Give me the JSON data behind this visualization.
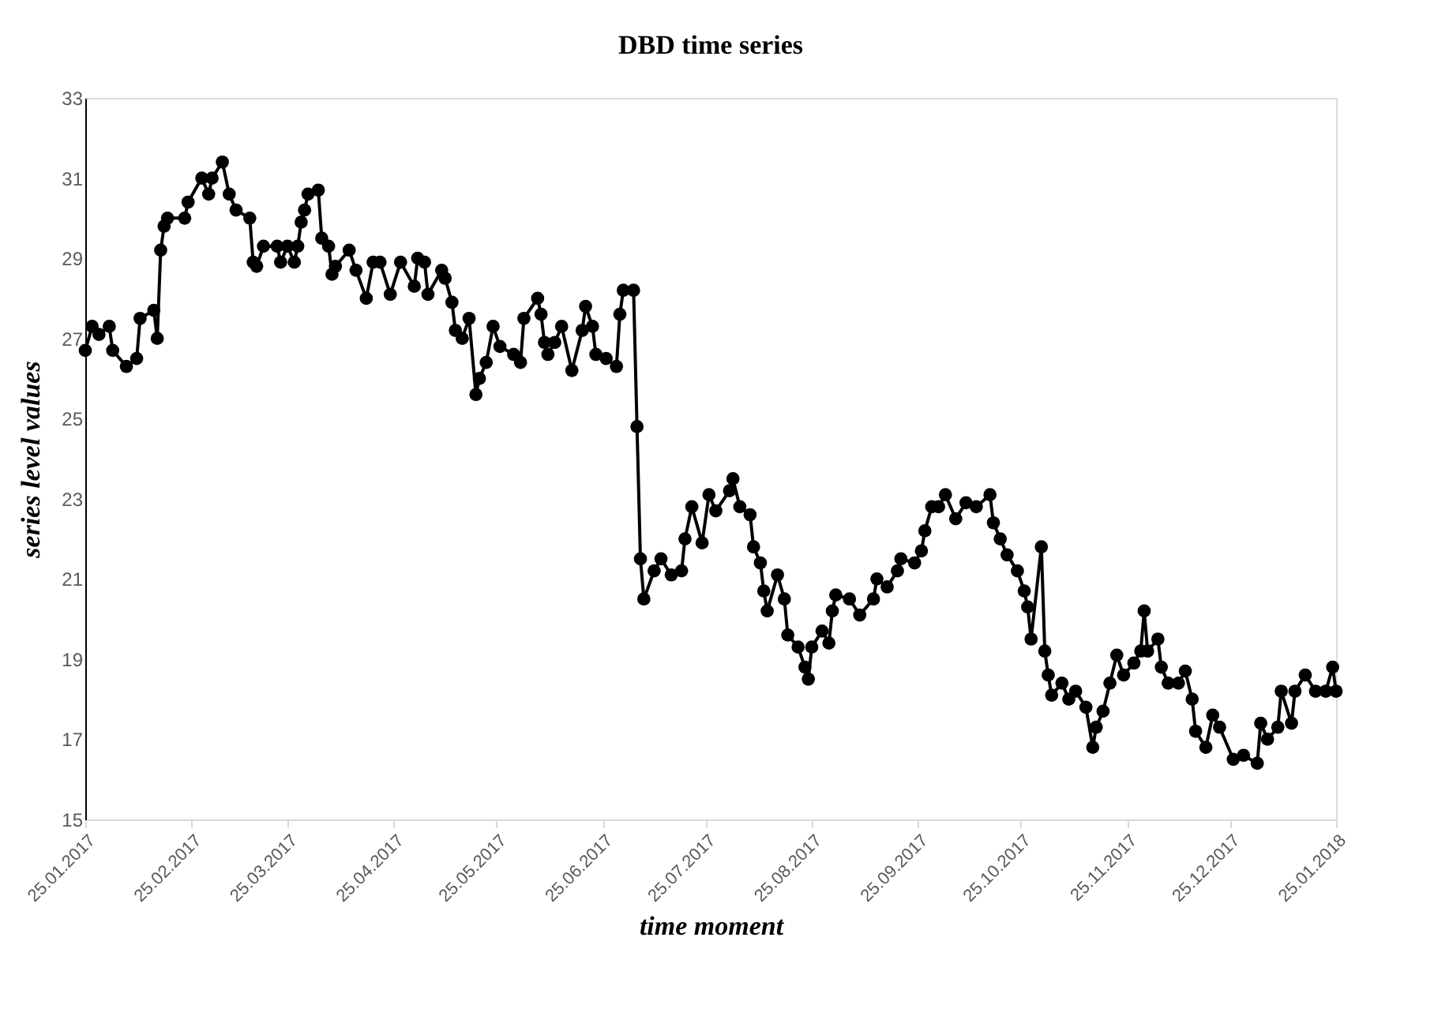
{
  "chart_data": {
    "type": "line",
    "title": "DBD time series",
    "xlabel": "time moment",
    "ylabel": "series level values",
    "x": [
      "2017-01-25",
      "2017-01-27",
      "2017-01-29",
      "2017-02-01",
      "2017-02-02",
      "2017-02-06",
      "2017-02-09",
      "2017-02-10",
      "2017-02-14",
      "2017-02-15",
      "2017-02-16",
      "2017-02-17",
      "2017-02-18",
      "2017-02-23",
      "2017-02-24",
      "2017-02-28",
      "2017-03-02",
      "2017-03-03",
      "2017-03-06",
      "2017-03-08",
      "2017-03-10",
      "2017-03-14",
      "2017-03-15",
      "2017-03-16",
      "2017-03-18",
      "2017-03-22",
      "2017-03-23",
      "2017-03-25",
      "2017-03-27",
      "2017-03-28",
      "2017-03-29",
      "2017-03-30",
      "2017-03-31",
      "2017-04-03",
      "2017-04-04",
      "2017-04-06",
      "2017-04-07",
      "2017-04-08",
      "2017-04-12",
      "2017-04-14",
      "2017-04-17",
      "2017-04-19",
      "2017-04-21",
      "2017-04-24",
      "2017-04-27",
      "2017-05-01",
      "2017-05-02",
      "2017-05-04",
      "2017-05-05",
      "2017-05-09",
      "2017-05-10",
      "2017-05-12",
      "2017-05-13",
      "2017-05-15",
      "2017-05-17",
      "2017-05-19",
      "2017-05-20",
      "2017-05-22",
      "2017-05-24",
      "2017-05-26",
      "2017-05-30",
      "2017-06-01",
      "2017-06-02",
      "2017-06-06",
      "2017-06-07",
      "2017-06-08",
      "2017-06-09",
      "2017-06-11",
      "2017-06-13",
      "2017-06-16",
      "2017-06-19",
      "2017-06-20",
      "2017-06-22",
      "2017-06-23",
      "2017-06-26",
      "2017-06-29",
      "2017-06-30",
      "2017-07-01",
      "2017-07-04",
      "2017-07-05",
      "2017-07-06",
      "2017-07-07",
      "2017-07-10",
      "2017-07-12",
      "2017-07-15",
      "2017-07-18",
      "2017-07-19",
      "2017-07-21",
      "2017-07-24",
      "2017-07-26",
      "2017-07-28",
      "2017-08-01",
      "2017-08-02",
      "2017-08-04",
      "2017-08-07",
      "2017-08-08",
      "2017-08-10",
      "2017-08-11",
      "2017-08-12",
      "2017-08-15",
      "2017-08-17",
      "2017-08-18",
      "2017-08-21",
      "2017-08-23",
      "2017-08-24",
      "2017-08-25",
      "2017-08-28",
      "2017-08-30",
      "2017-08-31",
      "2017-09-01",
      "2017-09-05",
      "2017-09-08",
      "2017-09-12",
      "2017-09-13",
      "2017-09-16",
      "2017-09-19",
      "2017-09-20",
      "2017-09-24",
      "2017-09-26",
      "2017-09-27",
      "2017-09-29",
      "2017-10-01",
      "2017-10-03",
      "2017-10-06",
      "2017-10-09",
      "2017-10-12",
      "2017-10-16",
      "2017-10-17",
      "2017-10-19",
      "2017-10-21",
      "2017-10-24",
      "2017-10-26",
      "2017-10-27",
      "2017-10-28",
      "2017-10-31",
      "2017-11-01",
      "2017-11-02",
      "2017-11-03",
      "2017-11-06",
      "2017-11-08",
      "2017-11-10",
      "2017-11-13",
      "2017-11-15",
      "2017-11-16",
      "2017-11-18",
      "2017-11-20",
      "2017-11-22",
      "2017-11-24",
      "2017-11-27",
      "2017-11-29",
      "2017-11-30",
      "2017-12-01",
      "2017-12-04",
      "2017-12-05",
      "2017-12-07",
      "2017-12-10",
      "2017-12-12",
      "2017-12-14",
      "2017-12-15",
      "2017-12-18",
      "2017-12-20",
      "2017-12-22",
      "2017-12-26",
      "2017-12-29",
      "2018-01-02",
      "2018-01-03",
      "2018-01-05",
      "2018-01-08",
      "2018-01-09",
      "2018-01-12",
      "2018-01-13",
      "2018-01-16",
      "2018-01-19",
      "2018-01-22",
      "2018-01-24",
      "2018-01-25"
    ],
    "series": [
      {
        "color": "#000000",
        "values": [
          26.7,
          27.3,
          27.1,
          27.3,
          26.7,
          26.3,
          26.5,
          27.5,
          27.7,
          27.0,
          29.2,
          29.8,
          30.0,
          30.0,
          30.4,
          31.0,
          30.6,
          31.0,
          31.4,
          30.6,
          30.2,
          30.0,
          28.9,
          28.8,
          29.3,
          29.3,
          28.9,
          29.3,
          28.9,
          29.3,
          29.9,
          30.2,
          30.6,
          30.7,
          29.5,
          29.3,
          28.6,
          28.8,
          29.2,
          28.7,
          28.0,
          28.9,
          28.9,
          28.1,
          28.9,
          28.3,
          29.0,
          28.9,
          28.1,
          28.7,
          28.5,
          27.9,
          27.2,
          27.0,
          27.5,
          25.6,
          26.0,
          26.4,
          27.3,
          26.8,
          26.6,
          26.4,
          27.5,
          28.0,
          27.6,
          26.9,
          26.6,
          26.9,
          27.3,
          26.2,
          27.2,
          27.8,
          27.3,
          26.6,
          26.5,
          26.3,
          27.6,
          28.2,
          28.2,
          24.8,
          21.5,
          20.5,
          21.2,
          21.5,
          21.1,
          21.2,
          22.0,
          22.8,
          21.9,
          23.1,
          22.7,
          23.2,
          23.5,
          22.8,
          22.6,
          21.8,
          21.4,
          20.7,
          20.2,
          21.1,
          20.5,
          19.6,
          19.3,
          18.8,
          18.5,
          19.3,
          19.7,
          19.4,
          20.2,
          20.6,
          20.5,
          20.1,
          20.5,
          21.0,
          20.8,
          21.2,
          21.5,
          21.4,
          21.7,
          22.2,
          22.8,
          22.8,
          23.1,
          22.5,
          22.9,
          22.8,
          23.1,
          22.4,
          22.0,
          21.6,
          21.2,
          20.7,
          20.3,
          19.5,
          21.8,
          19.2,
          18.6,
          18.1,
          18.4,
          18.0,
          18.2,
          17.8,
          16.8,
          17.3,
          17.7,
          18.4,
          19.1,
          18.6,
          18.9,
          19.2,
          20.2,
          19.2,
          19.5,
          18.8,
          18.4,
          18.4,
          18.7,
          18.0,
          17.2,
          16.8,
          17.6,
          17.3,
          16.5,
          16.6,
          16.4,
          17.4,
          17.0,
          17.3,
          18.2,
          17.4,
          18.2,
          18.6,
          18.2,
          18.2,
          18.8,
          18.2
        ]
      }
    ],
    "xlim": [
      "2017-01-25",
      "2018-01-25"
    ],
    "xticks": [
      {
        "value": "2017-01-25",
        "label": "25.01.2017"
      },
      {
        "value": "2017-02-25",
        "label": "25.02.2017"
      },
      {
        "value": "2017-03-25",
        "label": "25.03.2017"
      },
      {
        "value": "2017-04-25",
        "label": "25.04.2017"
      },
      {
        "value": "2017-05-25",
        "label": "25.05.2017"
      },
      {
        "value": "2017-06-25",
        "label": "25.06.2017"
      },
      {
        "value": "2017-07-25",
        "label": "25.07.2017"
      },
      {
        "value": "2017-08-25",
        "label": "25.08.2017"
      },
      {
        "value": "2017-09-25",
        "label": "25.09.2017"
      },
      {
        "value": "2017-10-25",
        "label": "25.10.2017"
      },
      {
        "value": "2017-11-25",
        "label": "25.11.2017"
      },
      {
        "value": "2017-12-25",
        "label": "25.12.2017"
      },
      {
        "value": "2018-01-25",
        "label": "25.01.2018"
      }
    ],
    "ylim": [
      15,
      33
    ],
    "yticks": [
      15,
      17,
      19,
      21,
      23,
      25,
      27,
      29,
      31,
      33
    ],
    "grid": false,
    "marker": "circle",
    "line_style": "solid"
  }
}
